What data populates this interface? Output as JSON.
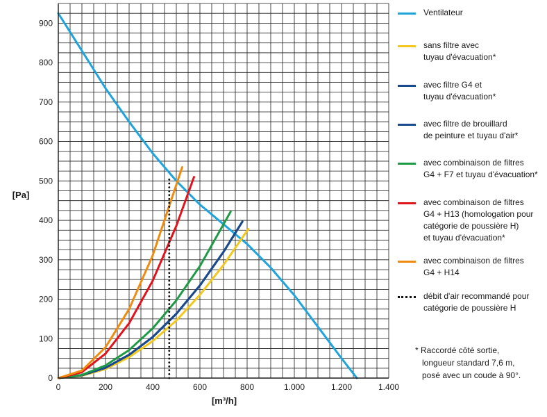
{
  "chart_data": {
    "type": "line",
    "xlabel": "[m³/h]",
    "ylabel": "[Pa]",
    "xlim": [
      0,
      1400
    ],
    "ylim": [
      0,
      950
    ],
    "x_ticks": [
      "0",
      "200",
      "400",
      "600",
      "800",
      "1.000",
      "1.200",
      "1.400"
    ],
    "y_ticks": [
      "0",
      "100",
      "200",
      "300",
      "400",
      "500",
      "600",
      "700",
      "800",
      "900"
    ],
    "grid": true,
    "legend_position": "right",
    "series": [
      {
        "name": "Ventilateur",
        "color": "#1fa3dc",
        "style": "solid",
        "x": [
          0,
          100,
          200,
          300,
          400,
          500,
          600,
          700,
          800,
          900,
          1000,
          1100,
          1200,
          1265
        ],
        "y": [
          925,
          830,
          735,
          650,
          570,
          500,
          440,
          390,
          340,
          280,
          210,
          130,
          50,
          0
        ]
      },
      {
        "name": "sans filtre avec\ntuyau d'évacuation*",
        "color": "#f2c81e",
        "style": "solid",
        "x": [
          0,
          100,
          200,
          300,
          400,
          500,
          600,
          700,
          805
        ],
        "y": [
          0,
          6,
          23,
          53,
          94,
          146,
          211,
          287,
          378
        ]
      },
      {
        "name": "avec filtre G4 et\ntuyau d'évacuation*",
        "color": "#1b4a8c",
        "style": "solid",
        "x": [
          0,
          100,
          200,
          300,
          400,
          500,
          600,
          700,
          780
        ],
        "y": [
          0,
          7,
          26,
          59,
          104,
          163,
          235,
          320,
          397
        ]
      },
      {
        "name": "avec filtre de brouillard\nde peinture et tuyau d'air*",
        "color": "#1b4a8c",
        "style": "solid",
        "x": [
          0,
          100,
          200,
          300,
          400,
          500,
          600,
          700,
          780
        ],
        "y": [
          0,
          7,
          26,
          59,
          104,
          163,
          235,
          320,
          397
        ]
      },
      {
        "name": "avec combinaison de filtres\nG4 + F7 et tuyau d'évacuation*",
        "color": "#1e9a44",
        "style": "solid",
        "x": [
          0,
          100,
          200,
          300,
          400,
          500,
          600,
          730
        ],
        "y": [
          0,
          8,
          32,
          71,
          126,
          197,
          284,
          422
        ]
      },
      {
        "name": "avec combinaison de filtres\nG4 + H13 (homologation pour\ncatégorie de poussière H)\net tuyau d'évacuation*",
        "color": "#e0141c",
        "style": "solid",
        "x": [
          0,
          100,
          200,
          300,
          400,
          500,
          575
        ],
        "y": [
          0,
          15,
          62,
          139,
          247,
          386,
          510
        ]
      },
      {
        "name": "avec combinaison de filtres\nG4 + H14",
        "color": "#ef8c10",
        "style": "solid",
        "x": [
          0,
          100,
          200,
          300,
          400,
          525
        ],
        "y": [
          0,
          19,
          78,
          175,
          311,
          535
        ]
      },
      {
        "name": "débit d'air recommandé pour\ncatégorie de poussière H",
        "color": "#111111",
        "style": "dotted",
        "x": [
          470,
          470
        ],
        "y": [
          0,
          505
        ]
      }
    ],
    "annotations": [
      "* Raccordé côté sortie,",
      "longueur standard 7,6 m,",
      "posé avec un coude à 90°."
    ]
  }
}
